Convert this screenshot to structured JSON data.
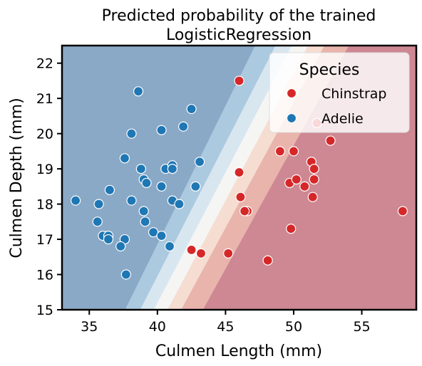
{
  "chart_data": {
    "type": "scatter",
    "title_lines": [
      "Predicted probability of the trained",
      "LogisticRegression"
    ],
    "xlabel": "Culmen Length (mm)",
    "ylabel": "Culmen Depth (mm)",
    "xlim": [
      33,
      59
    ],
    "ylim": [
      15,
      22.5
    ],
    "x_ticks": [
      35,
      40,
      45,
      50,
      55
    ],
    "y_ticks": [
      15,
      16,
      17,
      18,
      19,
      20,
      21,
      22
    ],
    "legend": {
      "title": "Species",
      "placement": "top-right",
      "entries": [
        {
          "label": "Chinstrap",
          "color": "#d62728"
        },
        {
          "label": "Adelie",
          "color": "#1f77b4"
        }
      ]
    },
    "background": {
      "description_colormap": "RdBu",
      "bands": [
        {
          "x_at_ylow": 37.5,
          "x_at_yhigh": 47.3,
          "color": "#8aa9c6"
        },
        {
          "x_at_ylow": 38.6,
          "x_at_yhigh": 48.8,
          "color": "#abc9df"
        },
        {
          "x_at_ylow": 39.6,
          "x_at_yhigh": 50.0,
          "color": "#d8e6f0"
        },
        {
          "x_at_ylow": 40.6,
          "x_at_yhigh": 51.2,
          "color": "#f5f5f4"
        },
        {
          "x_at_ylow": 41.6,
          "x_at_yhigh": 52.4,
          "color": "#f6ddd1"
        },
        {
          "x_at_ylow": 43.2,
          "x_at_yhigh": 54.2,
          "color": "#e8b4ac"
        },
        {
          "x_at_ylow": 99,
          "x_at_yhigh": 99,
          "color": "#cd8893"
        }
      ]
    },
    "series": [
      {
        "name": "Chinstrap",
        "color": "#d62728",
        "points": [
          [
            46.0,
            21.5
          ],
          [
            51.7,
            20.3
          ],
          [
            52.7,
            19.8
          ],
          [
            49.0,
            19.5
          ],
          [
            50.0,
            19.5
          ],
          [
            51.3,
            19.2
          ],
          [
            46.0,
            18.9
          ],
          [
            51.5,
            19.0
          ],
          [
            49.7,
            18.6
          ],
          [
            50.2,
            18.7
          ],
          [
            51.5,
            18.7
          ],
          [
            50.8,
            18.5
          ],
          [
            46.1,
            18.2
          ],
          [
            51.4,
            18.2
          ],
          [
            46.6,
            17.8
          ],
          [
            46.4,
            17.8
          ],
          [
            58.0,
            17.8
          ],
          [
            49.8,
            17.3
          ],
          [
            42.5,
            16.7
          ],
          [
            43.2,
            16.6
          ],
          [
            45.2,
            16.6
          ],
          [
            48.1,
            16.4
          ]
        ]
      },
      {
        "name": "Adelie",
        "color": "#1f77b4",
        "points": [
          [
            38.6,
            21.2
          ],
          [
            42.5,
            20.7
          ],
          [
            38.1,
            20.0
          ],
          [
            40.3,
            20.1
          ],
          [
            41.9,
            20.2
          ],
          [
            37.6,
            19.3
          ],
          [
            38.8,
            19.0
          ],
          [
            40.6,
            19.0
          ],
          [
            41.1,
            19.1
          ],
          [
            41.1,
            19.0
          ],
          [
            43.1,
            19.2
          ],
          [
            39.0,
            18.7
          ],
          [
            39.2,
            18.6
          ],
          [
            40.3,
            18.5
          ],
          [
            42.8,
            18.5
          ],
          [
            36.5,
            18.4
          ],
          [
            34.0,
            18.1
          ],
          [
            38.1,
            18.1
          ],
          [
            41.1,
            18.1
          ],
          [
            41.6,
            18.0
          ],
          [
            35.7,
            18.0
          ],
          [
            39.0,
            17.8
          ],
          [
            35.6,
            17.5
          ],
          [
            39.1,
            17.5
          ],
          [
            39.7,
            17.2
          ],
          [
            40.3,
            17.1
          ],
          [
            36.0,
            17.1
          ],
          [
            36.4,
            17.1
          ],
          [
            36.4,
            17.0
          ],
          [
            37.6,
            17.0
          ],
          [
            37.3,
            16.8
          ],
          [
            40.9,
            16.8
          ],
          [
            37.7,
            16.0
          ]
        ]
      }
    ]
  }
}
